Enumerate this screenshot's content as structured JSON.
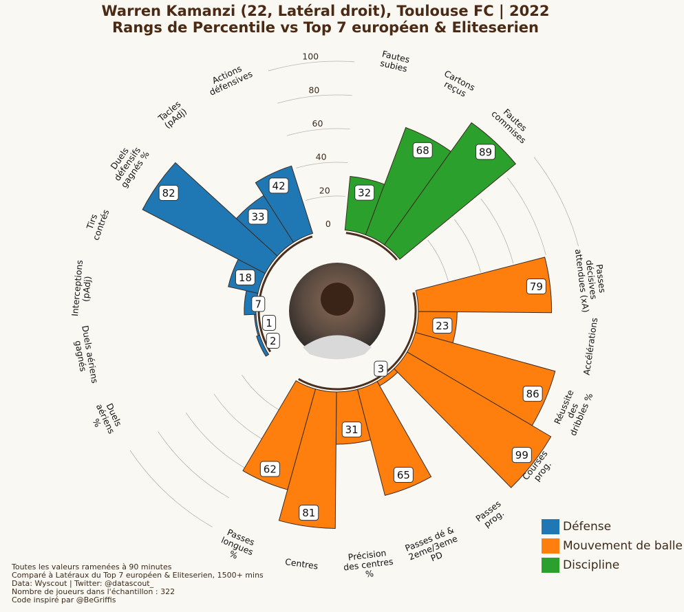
{
  "chart_data": {
    "type": "polar_bar",
    "title": "Warren Kamanzi (22, Latéral droit), Toulouse FC | 2022",
    "subtitle": "Rangs de Percentile vs Top 7 européen & Eliteserien",
    "ylim": [
      0,
      100
    ],
    "yticks": [
      0,
      20,
      40,
      60,
      80,
      100
    ],
    "series": [
      {
        "name": "Défense",
        "color": "#1f77b4",
        "categories": [
          "Duels\naériens\n%",
          "Duels aériens\ngagnés",
          "Interceptions\n(pAdj)",
          "Tirs\ncontrés",
          "Duels\ndéfensifs\ngagnés %",
          "Tacles\n(pAdj)",
          "Actions\ndéfensives"
        ],
        "values": [
          2,
          1,
          7,
          18,
          82,
          33,
          42
        ]
      },
      {
        "name": "Mouvement de balle",
        "color": "#ff7f0e",
        "categories": [
          "Passes\ndécisives\nattendues (xA)",
          "Accélérations",
          "Réussite\ndes\ndribbles %",
          "Courses\nprog.",
          "Passes\nprog.",
          "Passes dé &\n2eme/3eme\nPD",
          "Précision\ndes centres\n%",
          "Centres",
          "Passes\nlongues\n%"
        ],
        "values": [
          79,
          23,
          86,
          99,
          3,
          65,
          31,
          81,
          62
        ]
      },
      {
        "name": "Discipline",
        "color": "#2ca02c",
        "categories": [
          "Fautes\nsubies",
          "Cartons\nreçus",
          "Fautes\ncommises"
        ],
        "values": [
          32,
          68,
          89
        ]
      }
    ],
    "notes": [
      "Toutes les valeurs ramenées à 90 minutes",
      "Comparé à Latéraux du Top 7 européen & Eliteserien, 1500+ mins",
      "Data: Wyscout | Twitter: @datascout_",
      "Nombre de joueurs dans l'échantillon : 322",
      "Code inspiré par @BeGriffis"
    ]
  }
}
